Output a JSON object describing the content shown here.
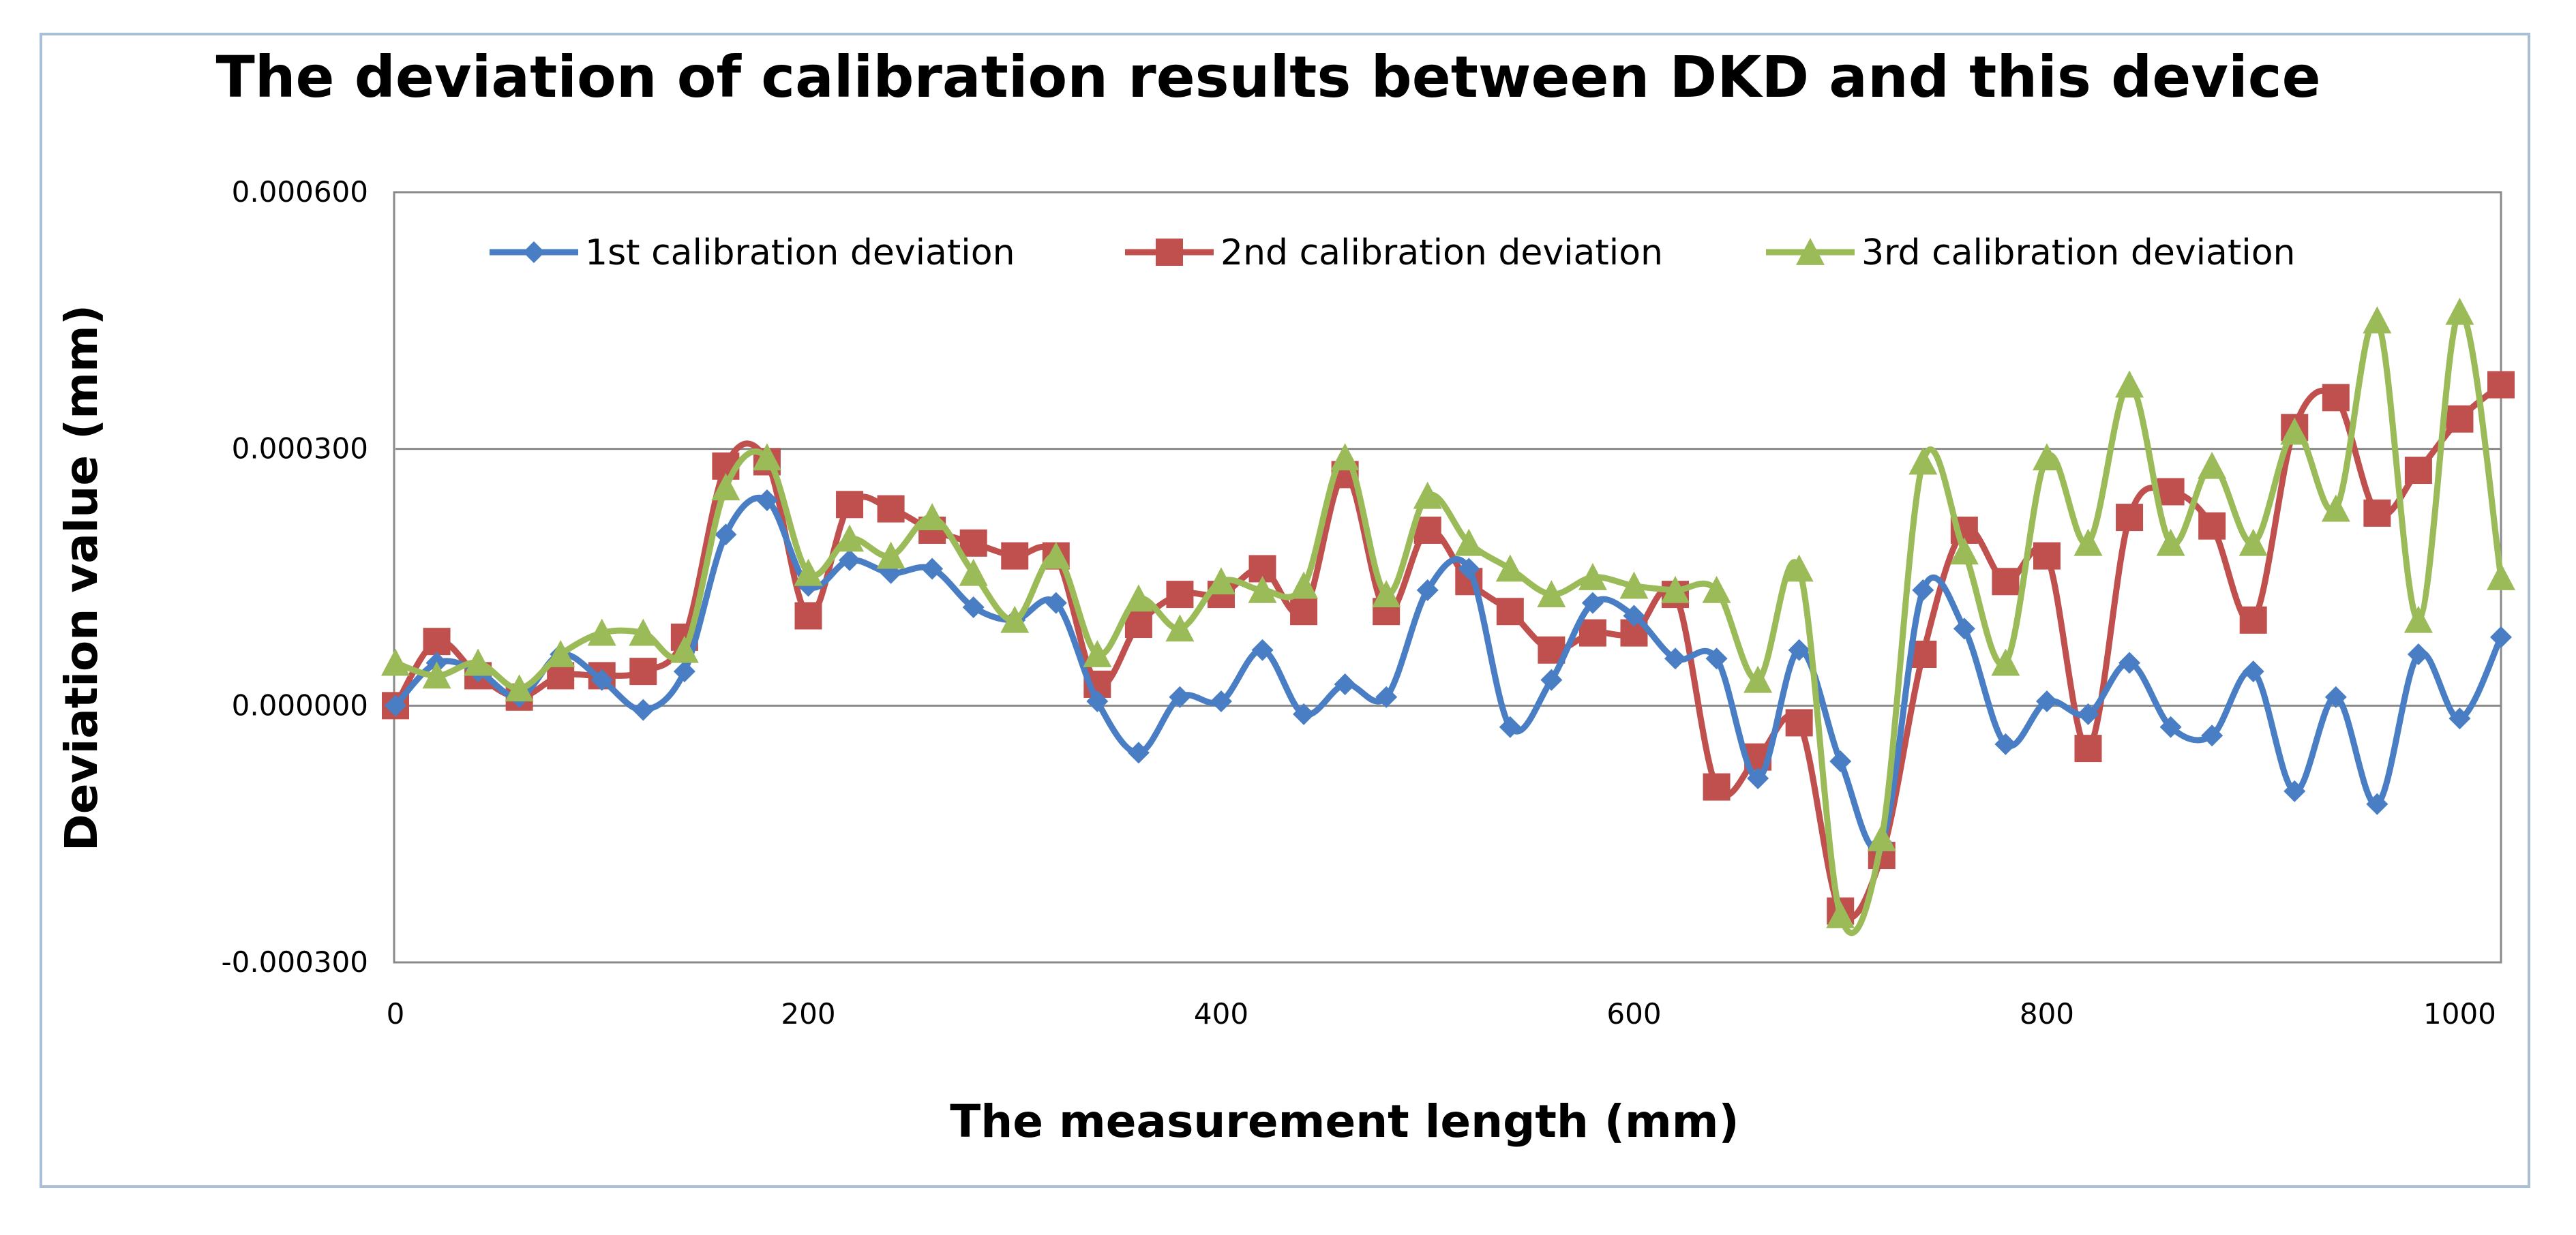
{
  "chart_data": {
    "type": "line",
    "title": "The deviation of calibration results between DKD and this device",
    "xlabel": "The measurement length (mm)",
    "ylabel": "Deviation value (mm)",
    "xlim": [
      0,
      1020
    ],
    "ylim": [
      -0.0003,
      0.0006
    ],
    "x_ticks": [
      0,
      200,
      400,
      600,
      800,
      1000
    ],
    "x_tick_labels": [
      "0",
      "200",
      "400",
      "600",
      "800",
      "1000"
    ],
    "y_ticks": [
      -0.0003,
      0,
      0.0003,
      0.0006
    ],
    "y_tick_labels": [
      "-0.000300",
      "0.000000",
      "0.000300",
      "0.000600"
    ],
    "grid": "horizontal",
    "legend_position": "top",
    "x": [
      0,
      20,
      40,
      60,
      80,
      100,
      120,
      140,
      160,
      180,
      200,
      220,
      240,
      260,
      280,
      300,
      320,
      340,
      360,
      380,
      400,
      420,
      440,
      460,
      480,
      500,
      520,
      540,
      560,
      580,
      600,
      620,
      640,
      660,
      680,
      700,
      720,
      740,
      760,
      780,
      800,
      820,
      840,
      860,
      880,
      900,
      920,
      940,
      960,
      980,
      1000,
      1020
    ],
    "series": [
      {
        "name": "1st calibration deviation",
        "color": "#4a7ec4",
        "marker": "diamond",
        "values": [
          0.0,
          5e-05,
          4e-05,
          1e-05,
          6e-05,
          3e-05,
          -5e-06,
          4e-05,
          0.0002,
          0.00024,
          0.00014,
          0.00017,
          0.000155,
          0.00016,
          0.000115,
          0.0001,
          0.00012,
          5e-06,
          -5.5e-05,
          1e-05,
          5e-06,
          6.5e-05,
          -1e-05,
          2.5e-05,
          1e-05,
          0.000135,
          0.00016,
          -2.5e-05,
          3e-05,
          0.00012,
          0.000105,
          5.5e-05,
          5.5e-05,
          -8.5e-05,
          6.5e-05,
          -6.5e-05,
          -0.00016,
          0.000135,
          9e-05,
          -4.5e-05,
          5e-06,
          -1e-05,
          5e-05,
          -2.5e-05,
          -3.5e-05,
          4e-05,
          -0.0001,
          1e-05,
          -0.000115,
          6e-05,
          -1.5e-05,
          8e-05
        ]
      },
      {
        "name": "2nd  calibration deviation",
        "color": "#c0504d",
        "marker": "square",
        "values": [
          0.0,
          7.5e-05,
          3.5e-05,
          1e-05,
          3.5e-05,
          3.5e-05,
          4e-05,
          8e-05,
          0.00028,
          0.000285,
          0.000105,
          0.000235,
          0.00023,
          0.000205,
          0.00019,
          0.000175,
          0.000175,
          2.5e-05,
          9.5e-05,
          0.00013,
          0.00013,
          0.00016,
          0.00011,
          0.00027,
          0.00011,
          0.000205,
          0.000145,
          0.00011,
          6.5e-05,
          8.5e-05,
          8.5e-05,
          0.00013,
          -9.5e-05,
          -6e-05,
          -2e-05,
          -0.00024,
          -0.000175,
          6e-05,
          0.000205,
          0.000145,
          0.000175,
          -5e-05,
          0.00022,
          0.00025,
          0.00021,
          0.0001,
          0.000325,
          0.00036,
          0.000225,
          0.000275,
          0.000335,
          0.000375
        ]
      },
      {
        "name": "3rd calibration deviation",
        "color": "#9bbb59",
        "marker": "triangle",
        "values": [
          5e-05,
          3.5e-05,
          5e-05,
          2e-05,
          6e-05,
          8.5e-05,
          8.5e-05,
          6.5e-05,
          0.000255,
          0.00029,
          0.000155,
          0.000195,
          0.000175,
          0.00022,
          0.000155,
          0.0001,
          0.000175,
          6e-05,
          0.000125,
          9e-05,
          0.000145,
          0.000135,
          0.00014,
          0.00029,
          0.00013,
          0.000245,
          0.00019,
          0.00016,
          0.00013,
          0.00015,
          0.00014,
          0.000135,
          0.000135,
          3e-05,
          0.00016,
          -0.000245,
          -0.000155,
          0.000285,
          0.00018,
          5e-05,
          0.00029,
          0.00019,
          0.000375,
          0.00019,
          0.00028,
          0.00019,
          0.00032,
          0.00023,
          0.00045,
          0.0001,
          0.00046,
          0.00015
        ]
      }
    ]
  }
}
